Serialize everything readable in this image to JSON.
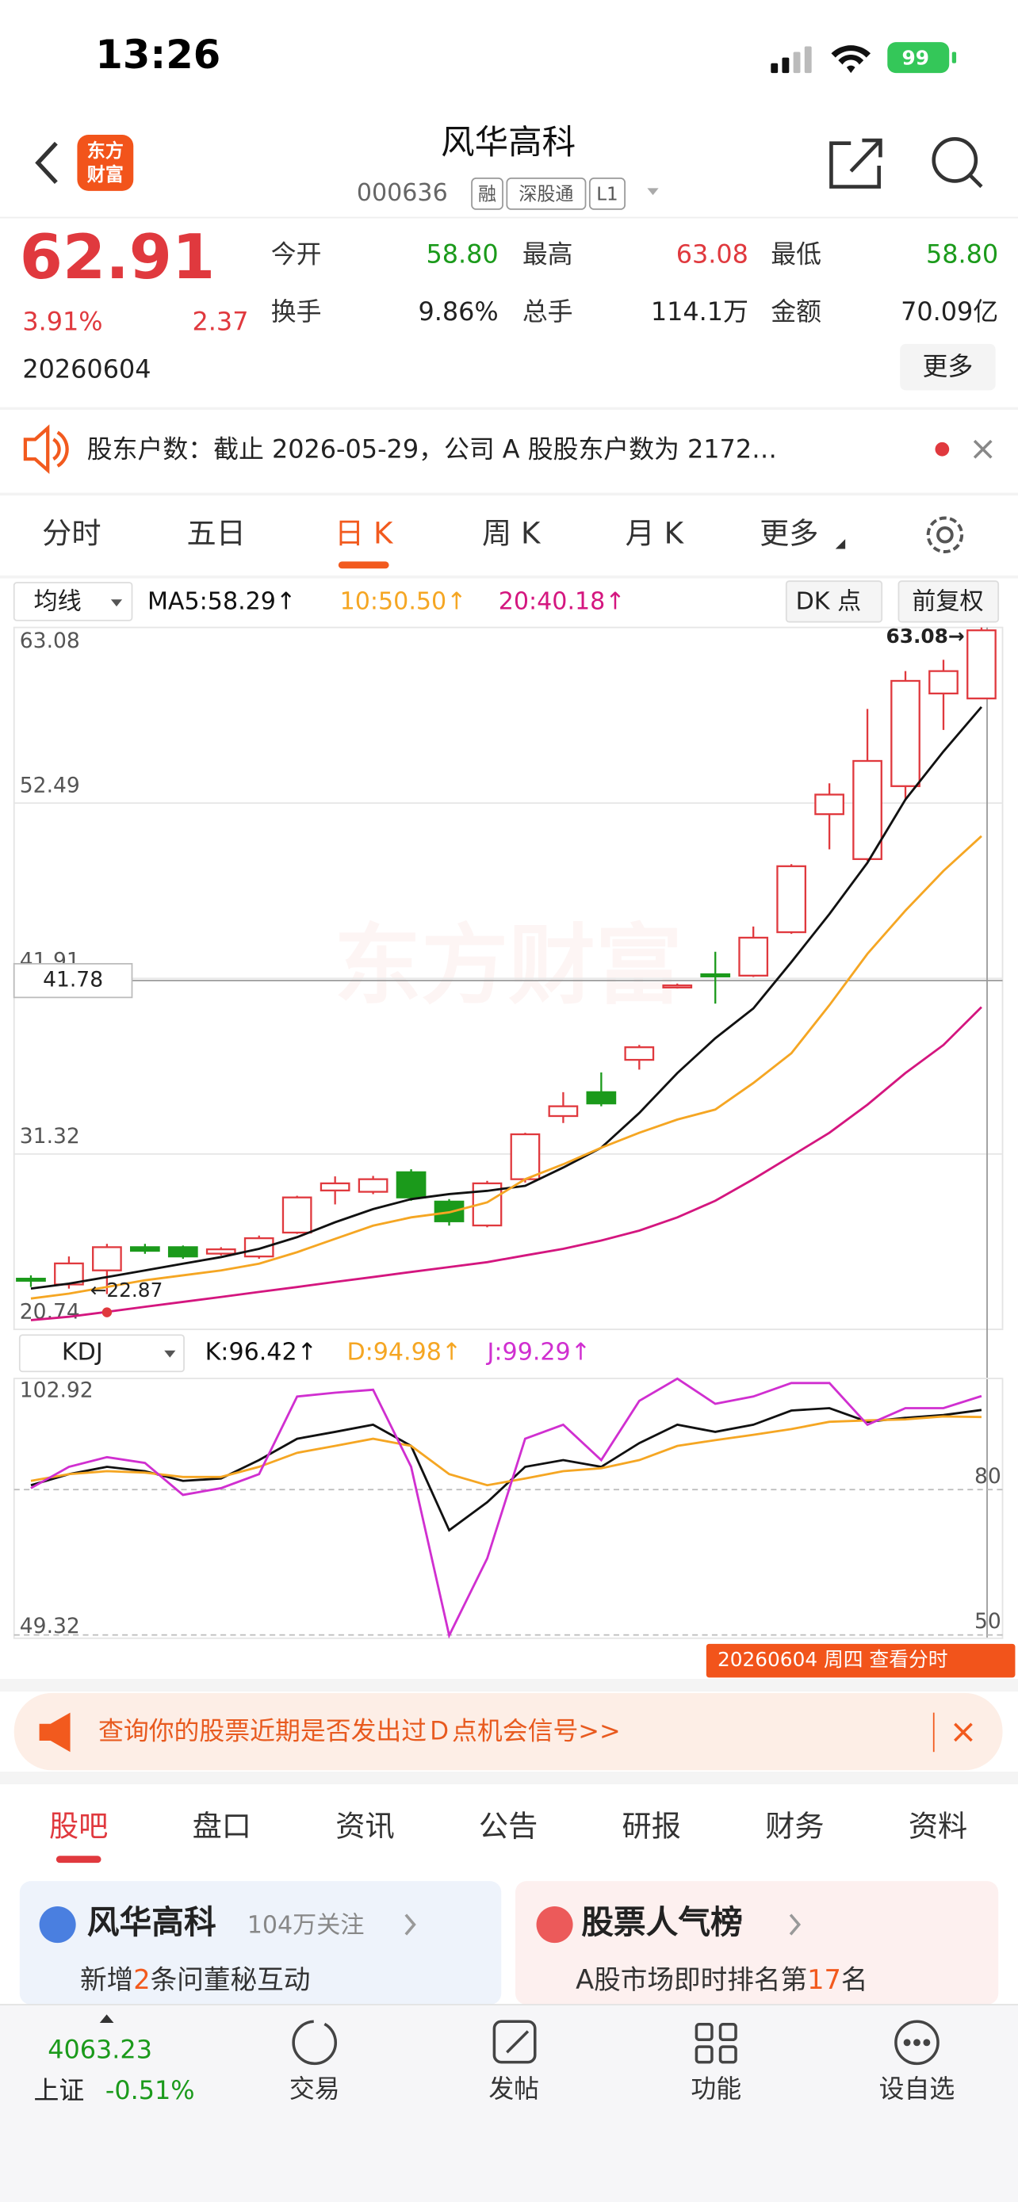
{
  "status": {
    "time": "13:26",
    "battery": "99"
  },
  "header": {
    "logo": [
      "东方",
      "财富"
    ],
    "title": "风华高科",
    "code": "000636",
    "tags": [
      "融",
      "深股通",
      "L1"
    ]
  },
  "quote": {
    "price": "62.91",
    "change_pct": "3.91%",
    "change": "2.37",
    "date": "20260604",
    "more": "更多",
    "stats": [
      [
        {
          "label": "今开",
          "value": "58.80"
        },
        {
          "label": "最高",
          "value": "63.08"
        },
        {
          "label": "最低",
          "value": "58.80"
        }
      ],
      [
        {
          "label": "换手",
          "value": "9.86%"
        },
        {
          "label": "总手",
          "value": "114.1万"
        },
        {
          "label": "金额",
          "value": "70.09亿"
        }
      ]
    ]
  },
  "notice": {
    "text": "股东户数：截止 2026-05-29，公司 A 股股东户数为 2172…"
  },
  "tabs": [
    "分时",
    "五日",
    "日 K",
    "周 K",
    "月 K",
    "更多"
  ],
  "active_tab": 2,
  "ma_bar": {
    "selector": "均线",
    "buttons": [
      "DK 点",
      "前复权"
    ]
  },
  "kdj_bar": {
    "selector": "KDJ"
  },
  "chart_data": [
    {
      "type": "candlestick",
      "ylim": [
        20.74,
        63.08
      ],
      "yticks": [
        63.08,
        52.49,
        41.91,
        31.32,
        20.74
      ],
      "up_color": "#e0393e",
      "down_color": "#1b9a1b",
      "open": [
        23.8,
        23.45,
        24.3,
        25.7,
        25.7,
        25.31,
        25.14,
        26.58,
        29.12,
        29.04,
        30.22,
        28.45,
        27.01,
        29.8,
        33.61,
        35.05,
        37.0,
        41.4,
        42.16,
        42.08,
        44.7,
        51.82,
        49.11,
        53.51,
        59.1,
        58.8
      ],
      "close": [
        23.7,
        24.72,
        25.7,
        25.48,
        25.14,
        25.57,
        26.24,
        28.7,
        29.55,
        29.8,
        28.7,
        27.26,
        29.55,
        32.51,
        34.2,
        34.37,
        37.76,
        41.49,
        42.08,
        44.37,
        48.68,
        53.0,
        55.03,
        59.86,
        60.45,
        62.91
      ],
      "low": [
        23.3,
        23.2,
        22.87,
        25.3,
        25.0,
        25.2,
        25.0,
        26.5,
        28.28,
        28.9,
        28.5,
        27.0,
        26.9,
        29.6,
        33.19,
        34.2,
        36.41,
        41.3,
        40.39,
        42.0,
        44.6,
        49.7,
        49.0,
        52.66,
        56.9,
        58.8
      ],
      "high": [
        24.0,
        25.14,
        25.9,
        25.9,
        25.8,
        25.7,
        26.4,
        28.8,
        29.97,
        30.0,
        30.4,
        28.6,
        29.7,
        32.6,
        35.05,
        36.24,
        37.9,
        41.6,
        43.52,
        45.04,
        48.8,
        53.68,
        58.17,
        60.45,
        61.13,
        63.08
      ],
      "series": [
        {
          "name": "MA5:58.29↑",
          "color": "#111111",
          "values": [
            23.2,
            23.5,
            23.9,
            24.3,
            24.7,
            25.1,
            25.6,
            26.3,
            27.2,
            28.0,
            28.6,
            28.9,
            29.1,
            29.4,
            30.5,
            31.7,
            33.8,
            36.2,
            38.3,
            40.1,
            42.9,
            45.8,
            48.9,
            52.7,
            55.6,
            58.29
          ]
        },
        {
          "name": "10:50.50↑",
          "color": "#f5a623",
          "values": [
            22.6,
            22.9,
            23.3,
            23.7,
            24.0,
            24.3,
            24.7,
            25.4,
            26.2,
            27.0,
            27.5,
            27.8,
            28.4,
            29.8,
            30.7,
            31.7,
            32.6,
            33.4,
            34.0,
            35.6,
            37.4,
            40.3,
            43.4,
            46.0,
            48.4,
            50.5
          ]
        },
        {
          "name": "20:40.18↑",
          "color": "#d4167f",
          "values": [
            21.3,
            21.5,
            21.8,
            22.1,
            22.4,
            22.7,
            23.0,
            23.3,
            23.6,
            23.9,
            24.2,
            24.5,
            24.8,
            25.2,
            25.6,
            26.1,
            26.7,
            27.5,
            28.5,
            29.8,
            31.2,
            32.6,
            34.3,
            36.2,
            37.9,
            40.18
          ]
        }
      ],
      "annotations": [
        "63.08→",
        "←22.87"
      ],
      "crosshair": 41.78,
      "watermark": "东方财富"
    },
    {
      "type": "line",
      "ylim": [
        49.32,
        102.92
      ],
      "yticks": [
        102.92,
        49.32
      ],
      "y2lim": [
        49.32,
        102.92
      ],
      "y2ticks": [
        80,
        50
      ],
      "series": [
        {
          "name": "K:96.42↑",
          "color": "#111111",
          "values": [
            80.9,
            83.2,
            84.7,
            83.8,
            81.8,
            82.3,
            86.1,
            90.5,
            91.9,
            93.4,
            89.0,
            71.6,
            77.4,
            84.7,
            86.1,
            84.7,
            89.6,
            93.4,
            91.9,
            93.4,
            96.3,
            96.8,
            94.0,
            94.8,
            95.4,
            96.42
          ]
        },
        {
          "name": "D:94.98↑",
          "color": "#f5a623",
          "values": [
            81.8,
            83.2,
            83.8,
            83.5,
            82.6,
            82.6,
            84.7,
            87.6,
            89.0,
            90.5,
            89.0,
            83.2,
            80.9,
            82.3,
            83.8,
            84.4,
            86.1,
            89.0,
            90.2,
            91.3,
            92.5,
            94.0,
            94.3,
            94.5,
            95.1,
            94.98
          ]
        },
        {
          "name": "J:99.29↑",
          "color": "#d02fd0",
          "values": [
            80.3,
            84.7,
            86.7,
            85.5,
            78.9,
            80.3,
            83.2,
            99.2,
            100.0,
            100.6,
            84.7,
            49.9,
            65.8,
            90.5,
            93.4,
            86.1,
            98.3,
            102.9,
            97.7,
            99.2,
            102.0,
            102.0,
            93.4,
            96.8,
            96.8,
            99.29
          ]
        }
      ]
    }
  ],
  "date_tag": "20260604 周四 查看分时",
  "banner": {
    "text": "查询你的股票近期是否发出过Ｄ点机会信号>>"
  },
  "sub_tabs": [
    "股吧",
    "盘口",
    "资讯",
    "公告",
    "研报",
    "财务",
    "资料"
  ],
  "active_sub_tab": 0,
  "cards": [
    {
      "title": "风华高科",
      "meta": "104万关注",
      "detail": [
        "新增",
        "2",
        "条问董秘互动"
      ]
    },
    {
      "title": "股票人气榜",
      "detail": [
        "A股市场即时排名第",
        "17",
        "名"
      ]
    }
  ],
  "bottom_nav": {
    "index_value": "4063.23",
    "index_name": "上证",
    "index_change": "-0.51%",
    "items": [
      "交易",
      "发帖",
      "功能",
      "设自选"
    ]
  }
}
